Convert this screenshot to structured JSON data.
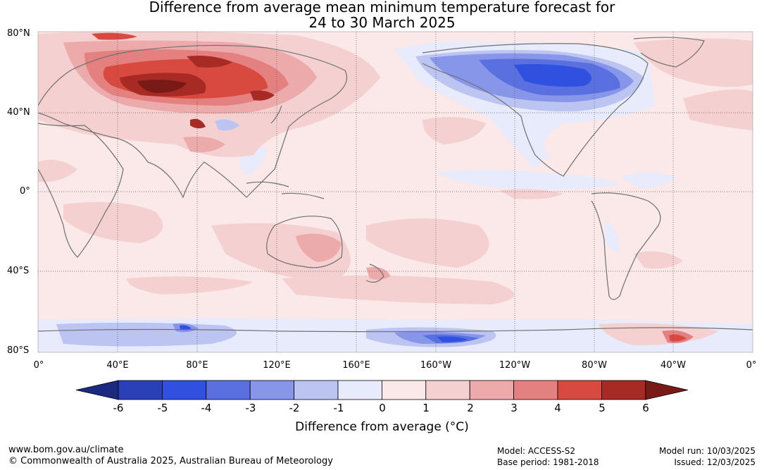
{
  "title": {
    "line1": "Difference from average mean minimum temperature forecast for",
    "line2": "24 to 30 March 2025"
  },
  "map": {
    "lat_labels": [
      "80°N",
      "40°N",
      "0°",
      "40°S",
      "80°S"
    ],
    "lon_labels": [
      "0°",
      "40°E",
      "80°E",
      "120°E",
      "160°E",
      "160°W",
      "120°W",
      "80°W",
      "40°W",
      "0°"
    ],
    "features": [
      {
        "region": "Central Asia / Siberia",
        "anomaly_c": 5.5
      },
      {
        "region": "Western Siberia",
        "anomaly_c": 4
      },
      {
        "region": "Canada",
        "anomaly_c": -4.5
      },
      {
        "region": "Southern Ocean near 160°W",
        "anomaly_c": -4.5
      },
      {
        "region": "Antarctic coast near 80°E",
        "anomaly_c": -5
      },
      {
        "region": "Weddell Sea near 40°W",
        "anomaly_c": 4.5
      },
      {
        "region": "Tibetan Plateau",
        "anomaly_c": 5
      }
    ]
  },
  "colorbar": {
    "ticks": [
      "-6",
      "-5",
      "-4",
      "-3",
      "-2",
      "-1",
      "0",
      "1",
      "2",
      "3",
      "4",
      "5",
      "6"
    ],
    "colors": [
      "#1b2a80",
      "#2a40b8",
      "#3050e0",
      "#5a70e0",
      "#8896ea",
      "#bcc4f2",
      "#e8ebfb",
      "#fbe8e8",
      "#f4d0d0",
      "#ecaaaa",
      "#e58080",
      "#d84a40",
      "#a82a24",
      "#7a1a16"
    ],
    "label": "Difference from average (°C)"
  },
  "footer": {
    "url": "www.bom.gov.au/climate",
    "copyright": "© Commonwealth of Australia 2025, Australian Bureau of Meteorology",
    "model": "Model: ACCESS-S2",
    "base_period": "Base period: 1981-2018",
    "model_run": "Model run: 10/03/2025",
    "issued": "Issued: 12/03/2025"
  }
}
